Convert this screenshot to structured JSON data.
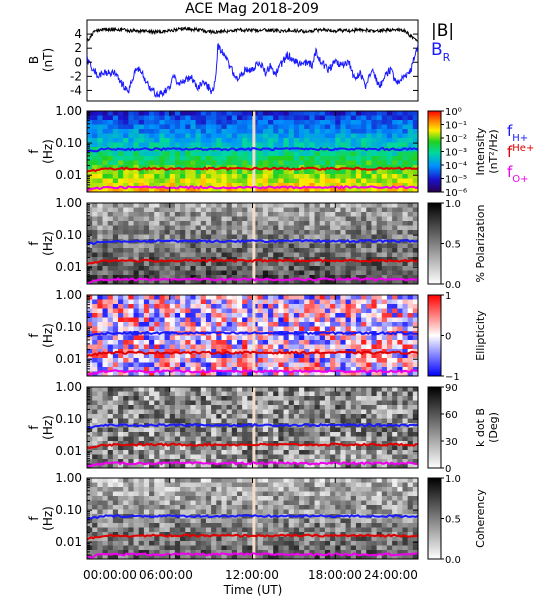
{
  "title": "ACE Mag 2018-209",
  "chart_data": {
    "type": "multi-panel spectrogram",
    "xlabel": "Time (UT)",
    "x_ticks": [
      "00:00:00",
      "06:00:00",
      "12:00:00",
      "18:00:00",
      "24:00:00"
    ],
    "xlim_hours": [
      0,
      24
    ],
    "data_gap_hour": 12.1,
    "freq_ticks": [
      "1.00",
      "0.10",
      "0.01"
    ],
    "freq_ylim_hz": [
      0.003,
      1.0
    ],
    "log_frequency_axis": true,
    "panel1": {
      "ylabel": "B",
      "yunit": "(nT)",
      "yticks": [
        "4",
        "2",
        "0",
        "-2",
        "-4"
      ],
      "ylim": [
        -5.5,
        6
      ],
      "legend": [
        {
          "label": "|B|",
          "color": "#000000"
        },
        {
          "label": "B",
          "sub": "R",
          "color": "#1a1aff"
        }
      ],
      "B_magnitude": {
        "t_hours": [
          0,
          0.5,
          1,
          2,
          3,
          4,
          5,
          6,
          7,
          8,
          9,
          10,
          11,
          12,
          13,
          14,
          15,
          16,
          17,
          18,
          19,
          20,
          21,
          22,
          23,
          24
        ],
        "values": [
          3.0,
          4.3,
          4.6,
          4.7,
          4.5,
          4.4,
          4.3,
          4.5,
          4.8,
          4.6,
          4.3,
          4.4,
          4.6,
          4.5,
          4.6,
          4.4,
          4.5,
          4.4,
          4.6,
          4.5,
          4.5,
          4.6,
          4.4,
          4.6,
          4.5,
          2.8
        ]
      },
      "B_R": {
        "t_hours": [
          0,
          0.3,
          0.8,
          1.3,
          2,
          2.5,
          3,
          3.3,
          3.6,
          4,
          4.5,
          5,
          5.5,
          6,
          6.3,
          6.7,
          7,
          7.5,
          8,
          8.5,
          9,
          9.3,
          9.5,
          9.8,
          10.2,
          10.6,
          11,
          11.5,
          12,
          12.5,
          13,
          13.3,
          13.6,
          14,
          14.5,
          15,
          15.5,
          16,
          16.3,
          16.6,
          17,
          17.5,
          18,
          18.5,
          19,
          19.4,
          19.8,
          20.2,
          20.7,
          21.2,
          21.6,
          22,
          22.5,
          23,
          23.5,
          24
        ],
        "values": [
          0.5,
          -0.5,
          -2,
          -1.5,
          -1.5,
          -3,
          -4.2,
          -2.5,
          -0.8,
          -1.5,
          -3.5,
          -4.5,
          -4.5,
          -3.5,
          -2,
          -3,
          -2.8,
          -2,
          -3.5,
          -2.8,
          -4,
          -3,
          2.5,
          1.5,
          0,
          -1.5,
          -2.5,
          -1,
          -1,
          0,
          -1.5,
          -0.5,
          -2,
          -0.5,
          1,
          0.5,
          -0.5,
          0,
          -0.5,
          1.5,
          0,
          -1,
          0,
          -0.5,
          0,
          -2.5,
          -1.5,
          -3.5,
          -1,
          -3.5,
          -2,
          -1,
          -3,
          -2,
          -1,
          2.5
        ]
      }
    },
    "line_series": [
      {
        "name": "f",
        "sub": "H+",
        "color": "#1a1aff",
        "level_hz": 0.065
      },
      {
        "name": "f",
        "sup": "He+",
        "color": "#e00000",
        "level_hz": 0.016
      },
      {
        "name": "f",
        "sub": "O+",
        "color": "#ee00ee",
        "level_hz": 0.0042
      }
    ],
    "panels": [
      {
        "id": "intensity",
        "colorbar": "rainbow",
        "colorbar_label": "Intensity",
        "colorbar_unit": "(nT²/Hz)",
        "colorbar_ticks": [
          "10⁰",
          "10⁻¹",
          "10⁻²",
          "10⁻³",
          "10⁻⁴",
          "10⁻⁵",
          "10⁻⁶"
        ]
      },
      {
        "id": "polarization",
        "colorbar": "grayscale",
        "colorbar_label": "% Polarization",
        "colorbar_ticks": [
          "1.0",
          "0.5",
          "0.0"
        ]
      },
      {
        "id": "ellipticity",
        "colorbar": "blue-white-red",
        "colorbar_label": "Ellipticity",
        "colorbar_ticks": [
          "1",
          "0",
          "−1"
        ]
      },
      {
        "id": "kdotb",
        "colorbar": "grayscale",
        "colorbar_label": "k dot B",
        "colorbar_unit": "(Deg)",
        "colorbar_ticks": [
          "90",
          "60",
          "30",
          "0"
        ]
      },
      {
        "id": "coherency",
        "colorbar": "grayscale",
        "colorbar_label": "Coherency",
        "colorbar_ticks": [
          "1.0",
          "0.5",
          "0.0"
        ]
      }
    ]
  }
}
